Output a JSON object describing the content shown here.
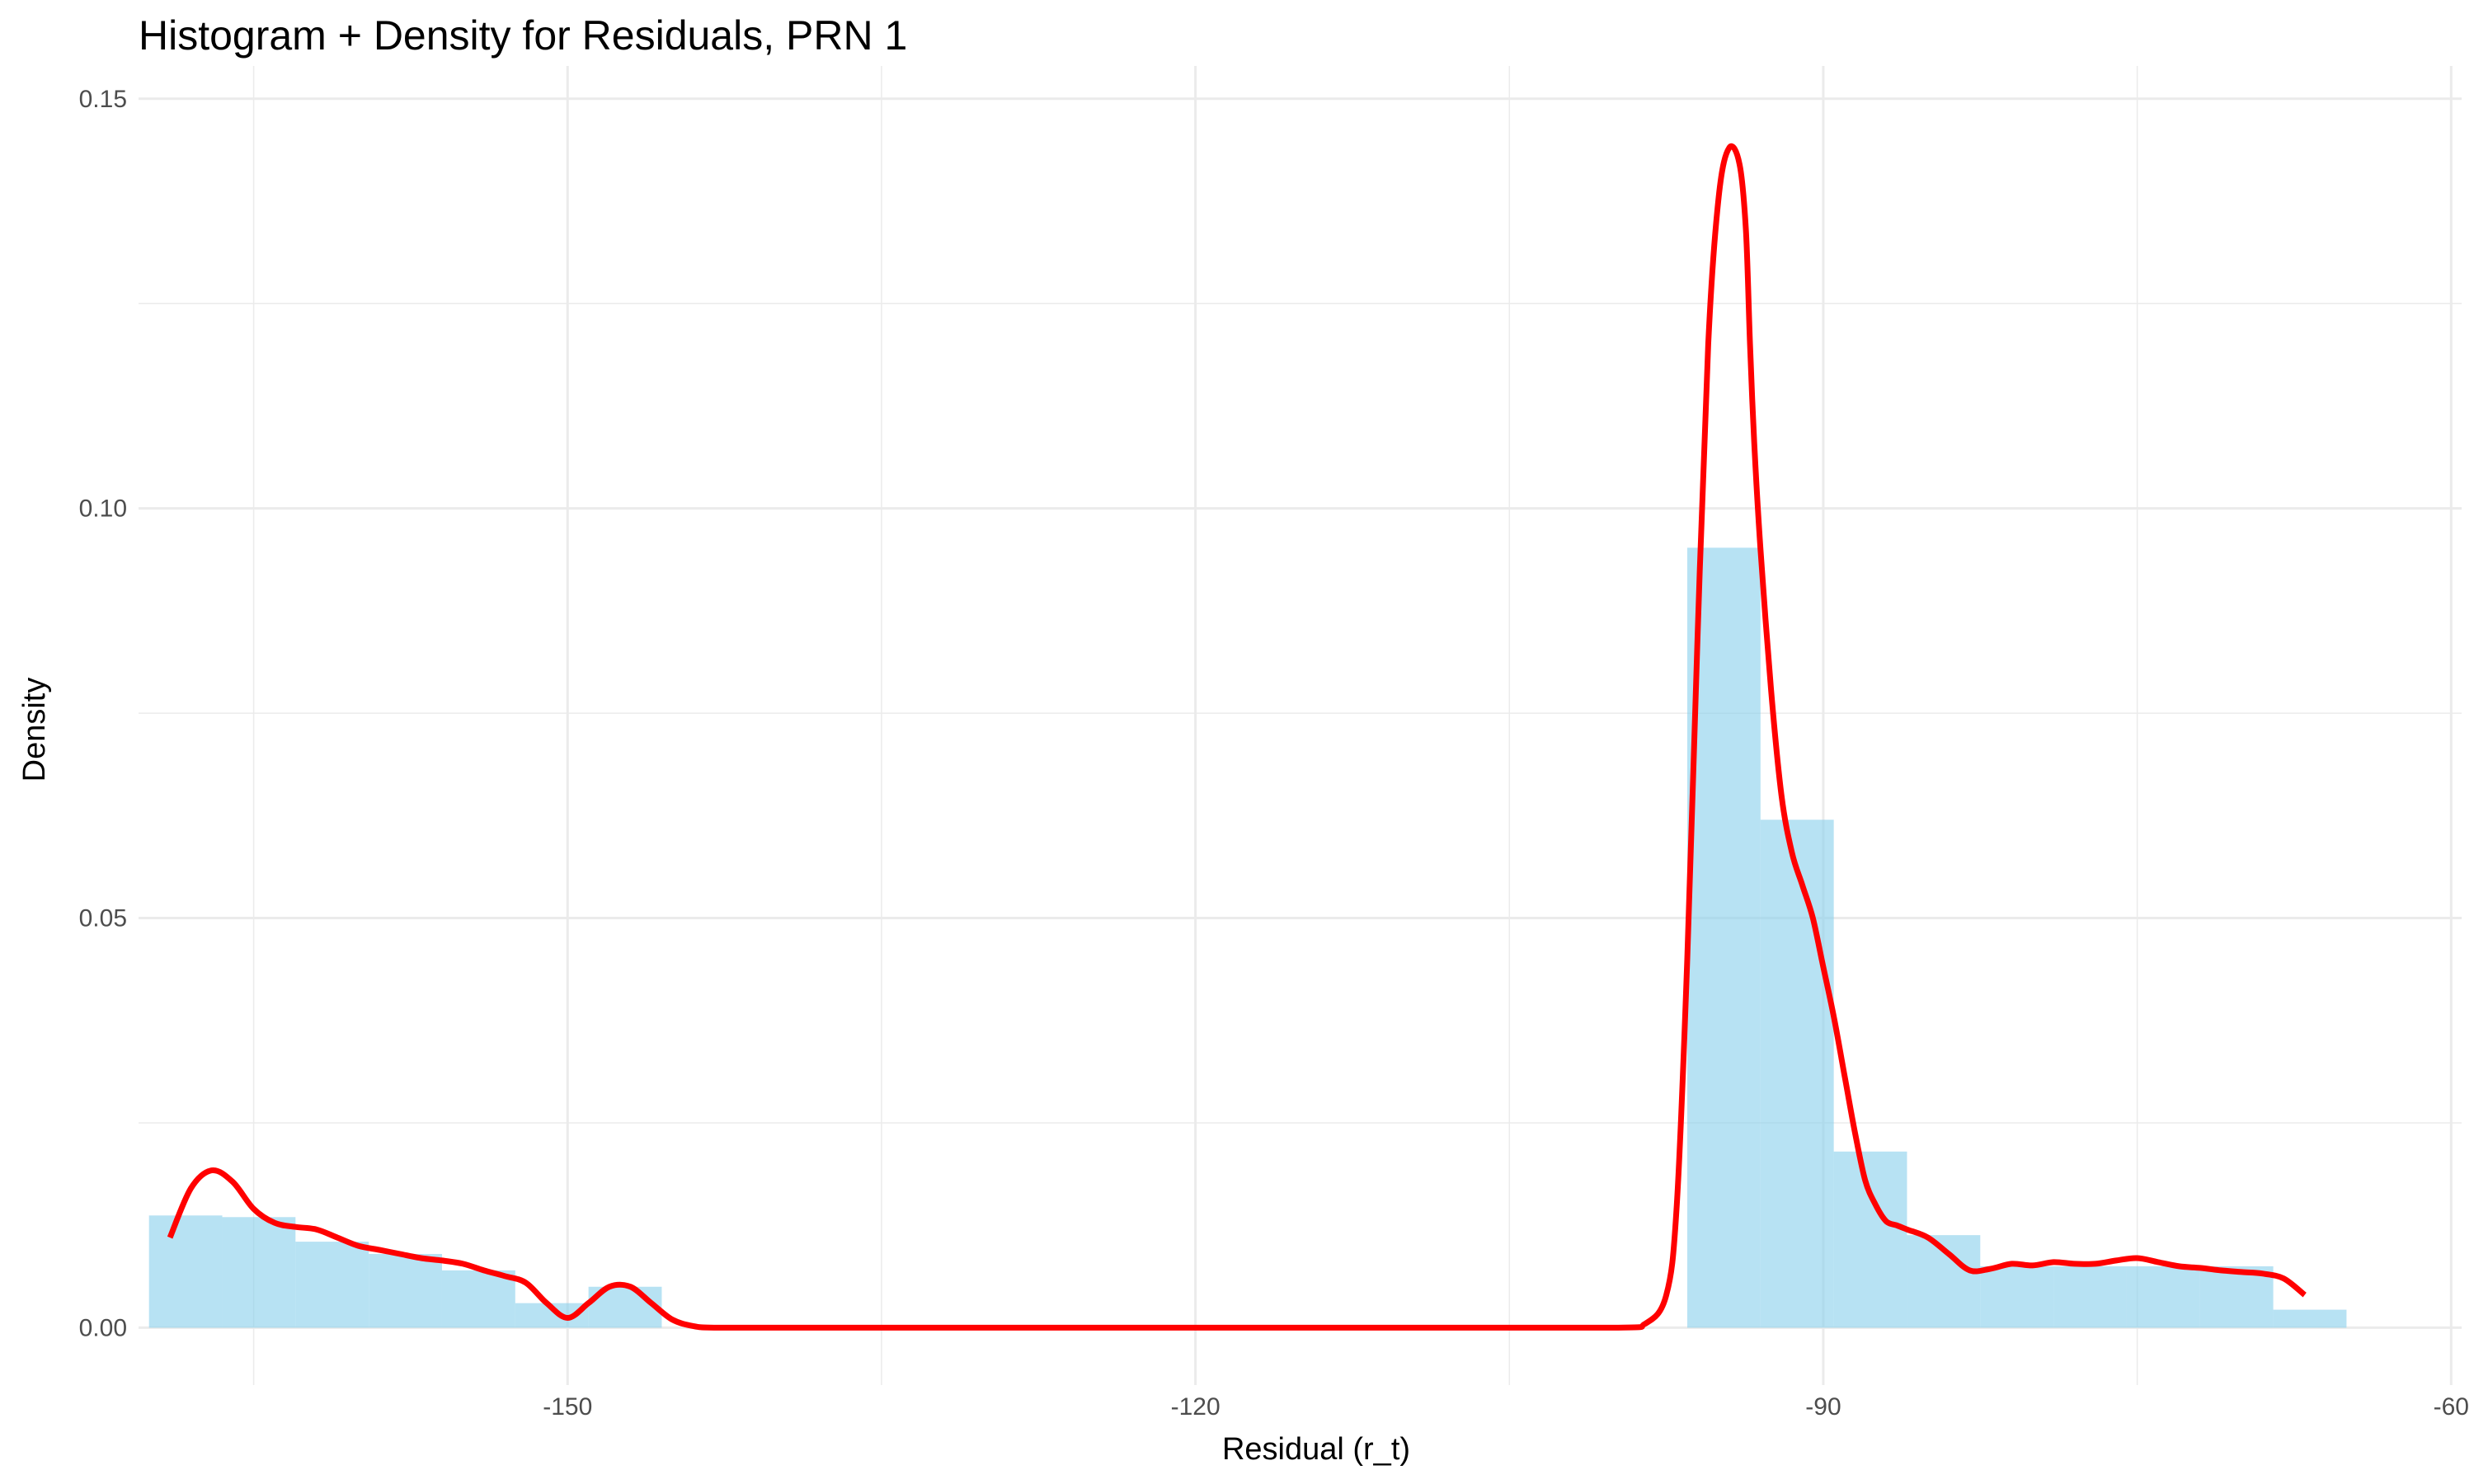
{
  "chart_data": {
    "type": "bar",
    "title": "Histogram + Density for Residuals, PRN 1",
    "xlabel": "Residual (r_t)",
    "ylabel": "Density",
    "xlim": [
      -170.5,
      -59.5
    ],
    "ylim": [
      -0.007,
      0.154
    ],
    "x_ticks": [
      -150,
      -120,
      -90,
      -60
    ],
    "x_tick_labels": [
      "-150",
      "-120",
      "-90",
      "-60"
    ],
    "x_minor_ticks": [
      -165,
      -135,
      -105,
      -75
    ],
    "y_ticks": [
      0.0,
      0.05,
      0.1,
      0.15
    ],
    "y_tick_labels": [
      "0.00",
      "0.05",
      "0.10",
      "0.15"
    ],
    "y_minor_ticks": [
      0.025,
      0.075,
      0.125
    ],
    "grid": true,
    "histogram": {
      "color": "#87CEEB",
      "bin_width": 3.5,
      "bins": [
        {
          "x0": -170.0,
          "x1": -166.5,
          "value": 0.0137
        },
        {
          "x0": -166.5,
          "x1": -163.0,
          "value": 0.0135
        },
        {
          "x0": -163.0,
          "x1": -159.5,
          "value": 0.0105
        },
        {
          "x0": -159.5,
          "x1": -156.0,
          "value": 0.009
        },
        {
          "x0": -156.0,
          "x1": -152.5,
          "value": 0.007
        },
        {
          "x0": -152.5,
          "x1": -149.0,
          "value": 0.003
        },
        {
          "x0": -149.0,
          "x1": -145.5,
          "value": 0.005
        },
        {
          "x0": -117.0,
          "x1": -113.5,
          "value": 0.0
        },
        {
          "x0": -96.5,
          "x1": -93.0,
          "value": 0.0952
        },
        {
          "x0": -93.0,
          "x1": -89.5,
          "value": 0.062
        },
        {
          "x0": -89.5,
          "x1": -86.0,
          "value": 0.0215
        },
        {
          "x0": -86.0,
          "x1": -82.5,
          "value": 0.0113
        },
        {
          "x0": -82.5,
          "x1": -79.0,
          "value": 0.0075
        },
        {
          "x0": -79.0,
          "x1": -75.5,
          "value": 0.0075
        },
        {
          "x0": -75.5,
          "x1": -72.0,
          "value": 0.0075
        },
        {
          "x0": -72.0,
          "x1": -68.5,
          "value": 0.0075
        },
        {
          "x0": -68.5,
          "x1": -65.0,
          "value": 0.0022
        }
      ]
    },
    "density": {
      "color": "#FF0000",
      "x": [
        -169.0,
        -168.0,
        -167.0,
        -166.0,
        -165.0,
        -164.0,
        -163.0,
        -162.0,
        -161.0,
        -160.0,
        -159.0,
        -158.0,
        -157.0,
        -156.0,
        -155.0,
        -154.0,
        -153.0,
        -152.0,
        -151.0,
        -150.0,
        -149.0,
        -148.0,
        -147.0,
        -146.0,
        -145.0,
        -144.0,
        -143.0,
        -140.0,
        -130.0,
        -120.0,
        -110.0,
        -100.0,
        -98.5,
        -97.5,
        -97.0,
        -96.5,
        -96.0,
        -95.5,
        -95.0,
        -94.5,
        -94.0,
        -93.7,
        -93.5,
        -93.3,
        -93.0,
        -92.5,
        -92.0,
        -91.5,
        -91.0,
        -90.5,
        -90.0,
        -89.5,
        -89.0,
        -88.5,
        -88.0,
        -87.5,
        -87.0,
        -86.5,
        -86.0,
        -85.0,
        -84.0,
        -83.0,
        -82.0,
        -81.0,
        -80.0,
        -79.0,
        -78.0,
        -77.0,
        -76.0,
        -75.0,
        -74.0,
        -73.0,
        -72.0,
        -71.0,
        -70.0,
        -69.0,
        -68.0,
        -67.0
      ],
      "y": [
        0.011,
        0.017,
        0.0192,
        0.0178,
        0.0145,
        0.0128,
        0.0123,
        0.012,
        0.011,
        0.01,
        0.0095,
        0.009,
        0.0085,
        0.0082,
        0.0078,
        0.007,
        0.0063,
        0.0055,
        0.003,
        0.0012,
        0.003,
        0.005,
        0.005,
        0.003,
        0.001,
        0.0002,
        0.0,
        0.0,
        0.0,
        0.0,
        0.0,
        0.0,
        0.0005,
        0.004,
        0.015,
        0.045,
        0.085,
        0.12,
        0.138,
        0.144,
        0.142,
        0.134,
        0.12,
        0.108,
        0.095,
        0.078,
        0.065,
        0.058,
        0.054,
        0.05,
        0.044,
        0.038,
        0.031,
        0.024,
        0.018,
        0.015,
        0.013,
        0.0125,
        0.012,
        0.011,
        0.009,
        0.007,
        0.0072,
        0.0078,
        0.0076,
        0.008,
        0.0078,
        0.0078,
        0.0082,
        0.0085,
        0.008,
        0.0075,
        0.0073,
        0.007,
        0.0068,
        0.0066,
        0.006,
        0.004
      ]
    }
  }
}
